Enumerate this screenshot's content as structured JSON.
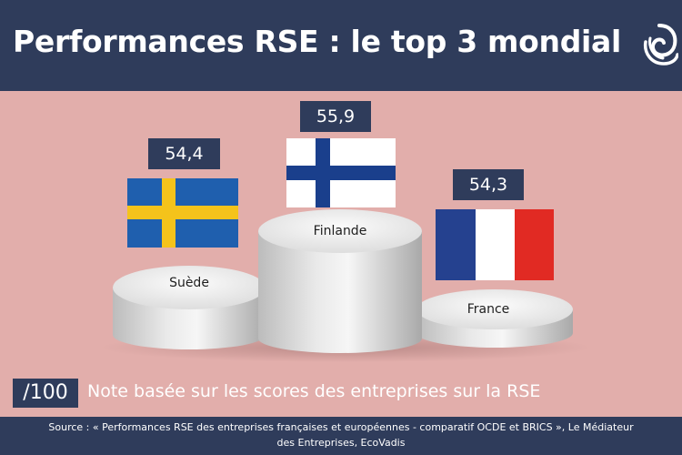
{
  "header": {
    "title": "Performances RSE : le top 3 mondial",
    "logo_icon": "spiral-logo-icon"
  },
  "colors": {
    "navy": "#2f3c5b",
    "background": "#e2aeab",
    "sweden_blue": "#1f5fae",
    "sweden_yellow": "#f4c31b",
    "finland_blue": "#1a3f8c",
    "france_blue": "#25418f",
    "france_red": "#e12a23"
  },
  "chart_data": {
    "type": "bar",
    "style": "podium",
    "categories": [
      "Suède",
      "Finlande",
      "France"
    ],
    "values": [
      54.4,
      55.9,
      54.3
    ],
    "value_labels": [
      "54,4",
      "55,9",
      "54,3"
    ],
    "flags": [
      "sweden-flag",
      "finland-flag",
      "france-flag"
    ],
    "podium_ranks": [
      2,
      1,
      3
    ],
    "unit": "/100"
  },
  "note": {
    "unit_label": "/100",
    "text": "Note basée sur les scores des entreprises sur la RSE"
  },
  "footer": {
    "source_line1": "Source : « Performances RSE des entreprises françaises et européennes - comparatif OCDE et BRICS », Le Médiateur",
    "source_line2": "des Entreprises, EcoVadis"
  }
}
